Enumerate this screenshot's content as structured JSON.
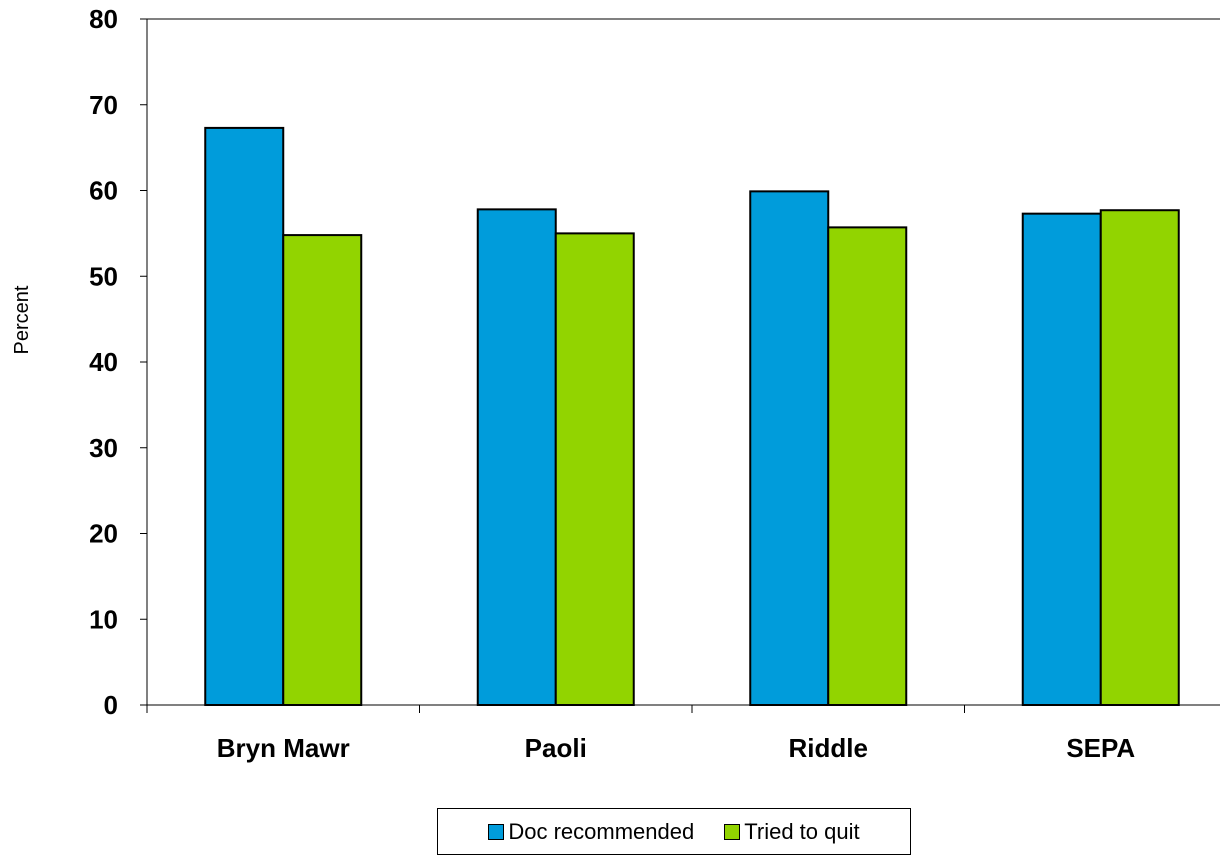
{
  "chart_data": {
    "type": "bar",
    "title": "",
    "xlabel": "",
    "ylabel": "Percent",
    "ylim": [
      0,
      80
    ],
    "yticks": [
      0,
      10,
      20,
      30,
      40,
      50,
      60,
      70,
      80
    ],
    "categories": [
      "Bryn Mawr",
      "Paoli",
      "Riddle",
      "SEPA"
    ],
    "series": [
      {
        "name": "Doc recommended",
        "values": [
          67.3,
          57.8,
          59.9,
          57.3
        ],
        "color": "#009CDB"
      },
      {
        "name": "Tried to quit",
        "values": [
          54.8,
          55.0,
          55.7,
          57.7
        ],
        "color": "#92D400"
      }
    ],
    "grid": false,
    "legend_position": "bottom"
  }
}
